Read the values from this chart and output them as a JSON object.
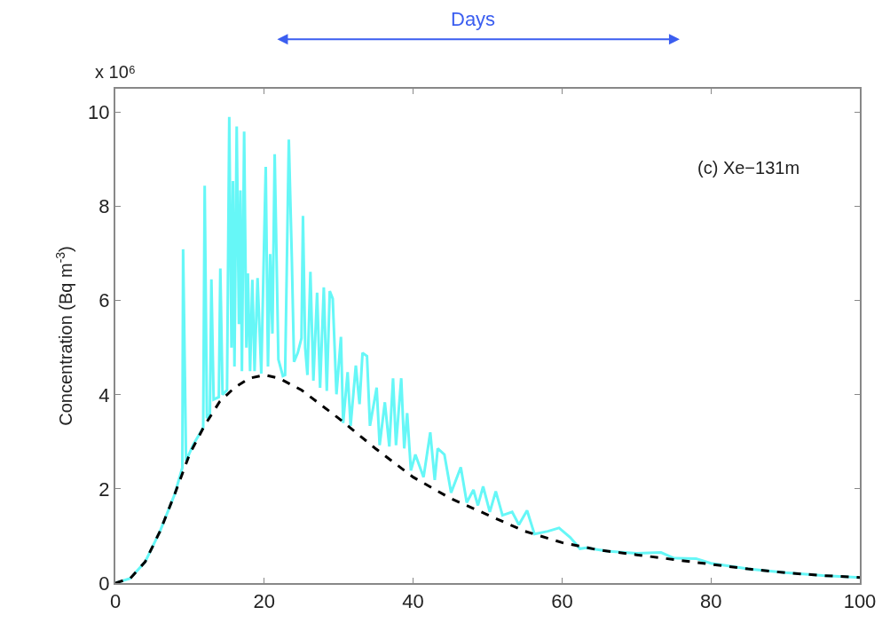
{
  "chart_data": {
    "type": "line",
    "ylabel": "Concentration (Bq m$^{-3}$)",
    "annotations": [
      "x 10⁶",
      "(c) Xe−131m",
      "Days"
    ],
    "xlim": [
      0,
      100
    ],
    "xticks": [
      0,
      20,
      40,
      60,
      80,
      100
    ],
    "ylim": [
      0,
      10.5
    ],
    "yticks": [
      0,
      2,
      4,
      6,
      8,
      10
    ],
    "marker": "none",
    "series": [
      {
        "color": "#66f7f7",
        "line_style": "solid",
        "x": [
          0,
          2,
          4,
          6,
          8,
          9.0,
          9.1,
          9.5,
          10.5,
          11.8,
          12.0,
          12.3,
          12.7,
          12.9,
          13.2,
          13.9,
          14.1,
          14.4,
          15.0,
          15.3,
          15.6,
          15.8,
          16.0,
          16.3,
          16.6,
          16.8,
          17.0,
          17.3,
          17.6,
          17.8,
          18.1,
          18.4,
          18.7,
          19.1,
          19.6,
          20.2,
          20.5,
          20.8,
          21.1,
          21.4,
          21.9,
          22.5,
          22.8,
          23.3,
          23.7,
          24.0,
          24.5,
          25.0,
          25.2,
          25.5,
          25.8,
          26.2,
          26.6,
          27.1,
          27.5,
          28.0,
          28.4,
          28.8,
          29.2,
          29.7,
          30.3,
          30.6,
          31.2,
          31.6,
          32.3,
          32.8,
          33.2,
          33.8,
          34.2,
          35.1,
          35.5,
          36.2,
          36.8,
          37.3,
          37.7,
          38.4,
          38.8,
          39.2,
          39.7,
          40.3,
          41.4,
          42.3,
          42.9,
          43.3,
          44.2,
          45.1,
          46.4,
          47.2,
          48.1,
          48.7,
          49.4,
          50.3,
          51.1,
          52.0,
          53.3,
          54.2,
          55.3,
          56.3,
          58.1,
          59.6,
          61.1,
          62.4,
          63.3,
          66,
          70,
          73.3,
          75,
          78,
          80,
          85,
          90,
          95,
          100
        ],
        "values": [
          0,
          0.1,
          0.45,
          1.1,
          1.9,
          2.45,
          7.09,
          2.6,
          2.95,
          3.3,
          8.44,
          3.5,
          3.6,
          6.45,
          3.9,
          3.95,
          6.68,
          4.0,
          4.1,
          9.9,
          5.0,
          8.54,
          4.6,
          9.7,
          5.5,
          8.34,
          4.5,
          9.59,
          5.0,
          6.58,
          4.5,
          6.44,
          4.5,
          6.48,
          4.45,
          8.84,
          4.6,
          6.99,
          5.3,
          9.11,
          4.75,
          4.4,
          4.42,
          9.42,
          6.92,
          4.7,
          4.89,
          5.2,
          7.8,
          5.0,
          4.42,
          6.61,
          4.3,
          6.17,
          4.15,
          6.28,
          4.08,
          6.2,
          6.04,
          4.01,
          5.23,
          3.4,
          4.48,
          3.34,
          4.62,
          3.8,
          4.89,
          4.82,
          3.34,
          4.15,
          2.93,
          3.84,
          2.9,
          4.35,
          2.93,
          4.35,
          2.86,
          3.61,
          2.39,
          2.73,
          2.25,
          3.2,
          2.19,
          2.86,
          2.73,
          1.92,
          2.46,
          1.71,
          1.98,
          1.65,
          2.05,
          1.51,
          1.95,
          1.44,
          1.51,
          1.24,
          1.54,
          1.04,
          1.1,
          1.17,
          0.97,
          0.73,
          0.75,
          0.68,
          0.63,
          0.65,
          0.53,
          0.52,
          0.42,
          0.3,
          0.22,
          0.16,
          0.12
        ]
      },
      {
        "color": "#000000",
        "line_style": "dashed",
        "x": [
          0,
          2,
          4,
          6,
          8,
          10,
          12,
          14,
          16,
          18,
          20,
          22,
          25,
          30,
          35,
          40,
          45,
          50,
          55,
          60,
          65,
          70,
          75,
          80,
          85,
          90,
          95,
          100
        ],
        "values": [
          0,
          0.1,
          0.45,
          1.1,
          1.9,
          2.75,
          3.35,
          3.85,
          4.15,
          4.35,
          4.42,
          4.35,
          4.1,
          3.5,
          2.85,
          2.25,
          1.8,
          1.45,
          1.1,
          0.86,
          0.7,
          0.6,
          0.5,
          0.4,
          0.3,
          0.22,
          0.16,
          0.12
        ]
      }
    ]
  }
}
